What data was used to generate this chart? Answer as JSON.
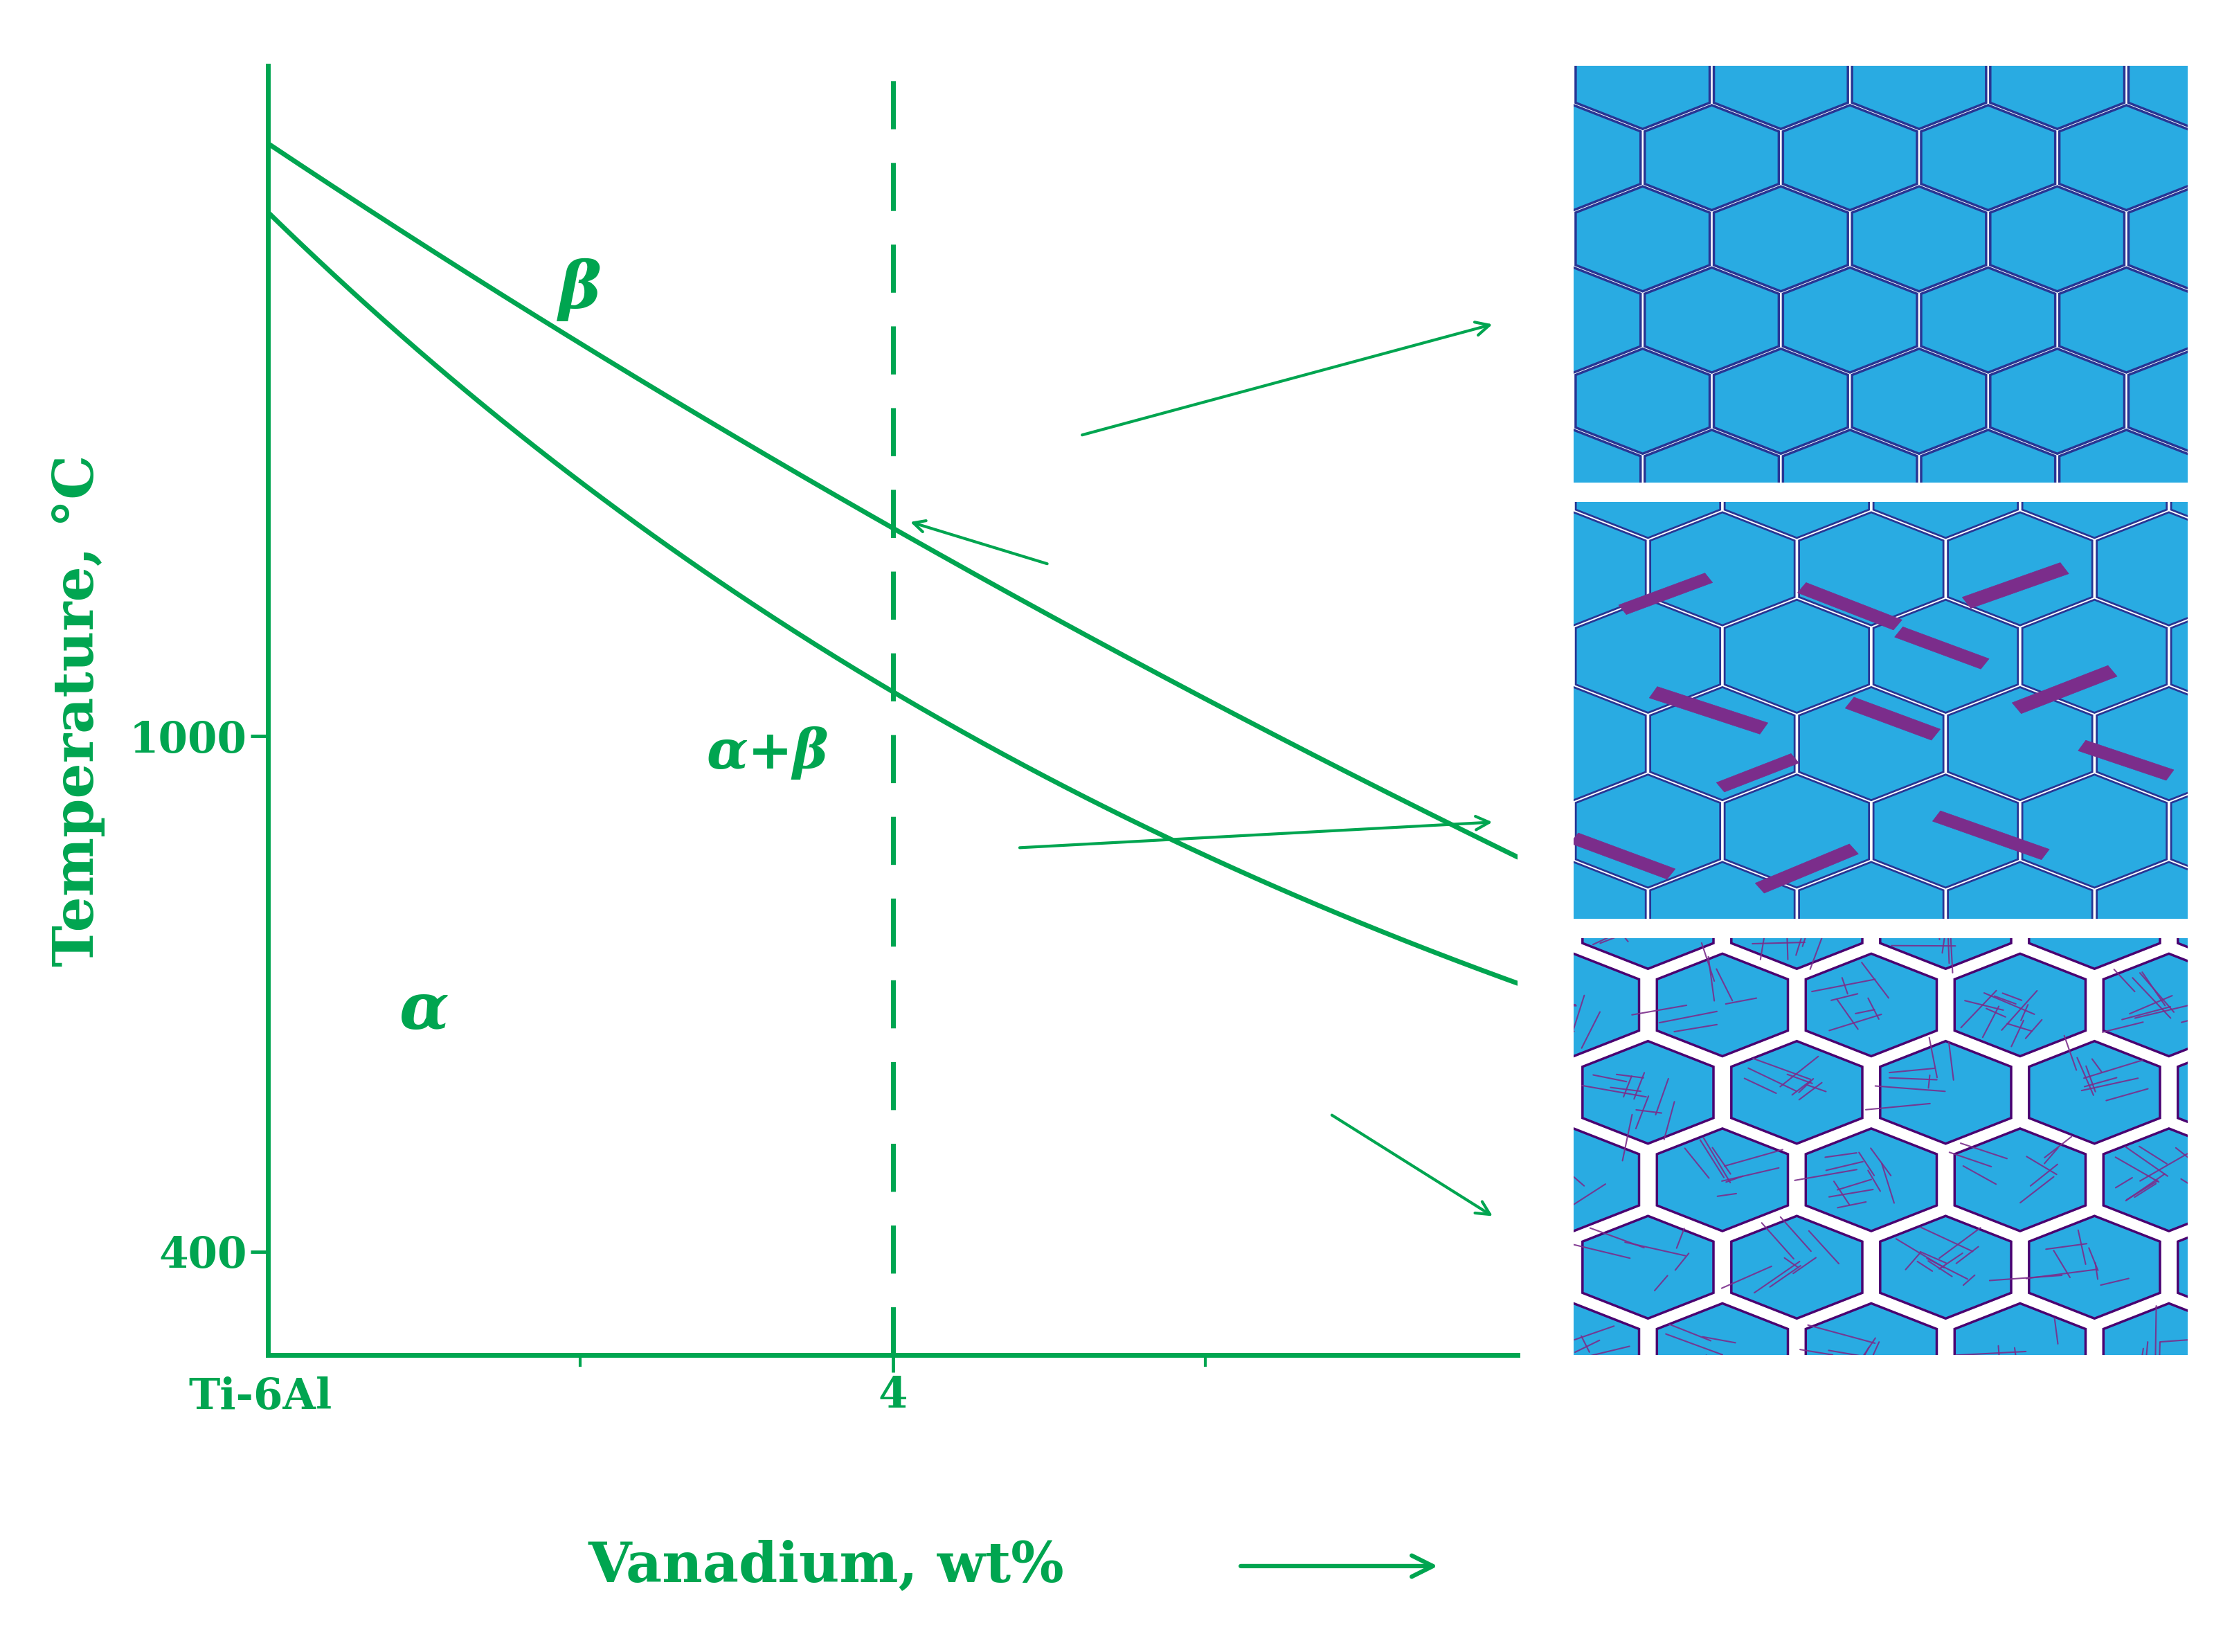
{
  "green_color": "#00A550",
  "bg_color": "#ffffff",
  "blue_hex": "#29ABE2",
  "purple_hex": "#7B2D8B",
  "dark_edge": "#1a237e",
  "dark_purple_bg": "#5B1A7A",
  "y_label": "Temperature, °C",
  "x_label": "Vanadium, wt%",
  "alpha_label": "α",
  "beta_label": "β",
  "alpha_beta_label": "α+β",
  "line_width": 5.0,
  "arrow_lw": 3.0,
  "font_size_ticks": 44,
  "font_size_phase": 56,
  "font_size_axis_title": 58,
  "xlim": [
    0,
    8
  ],
  "ylim": [
    280,
    1780
  ]
}
